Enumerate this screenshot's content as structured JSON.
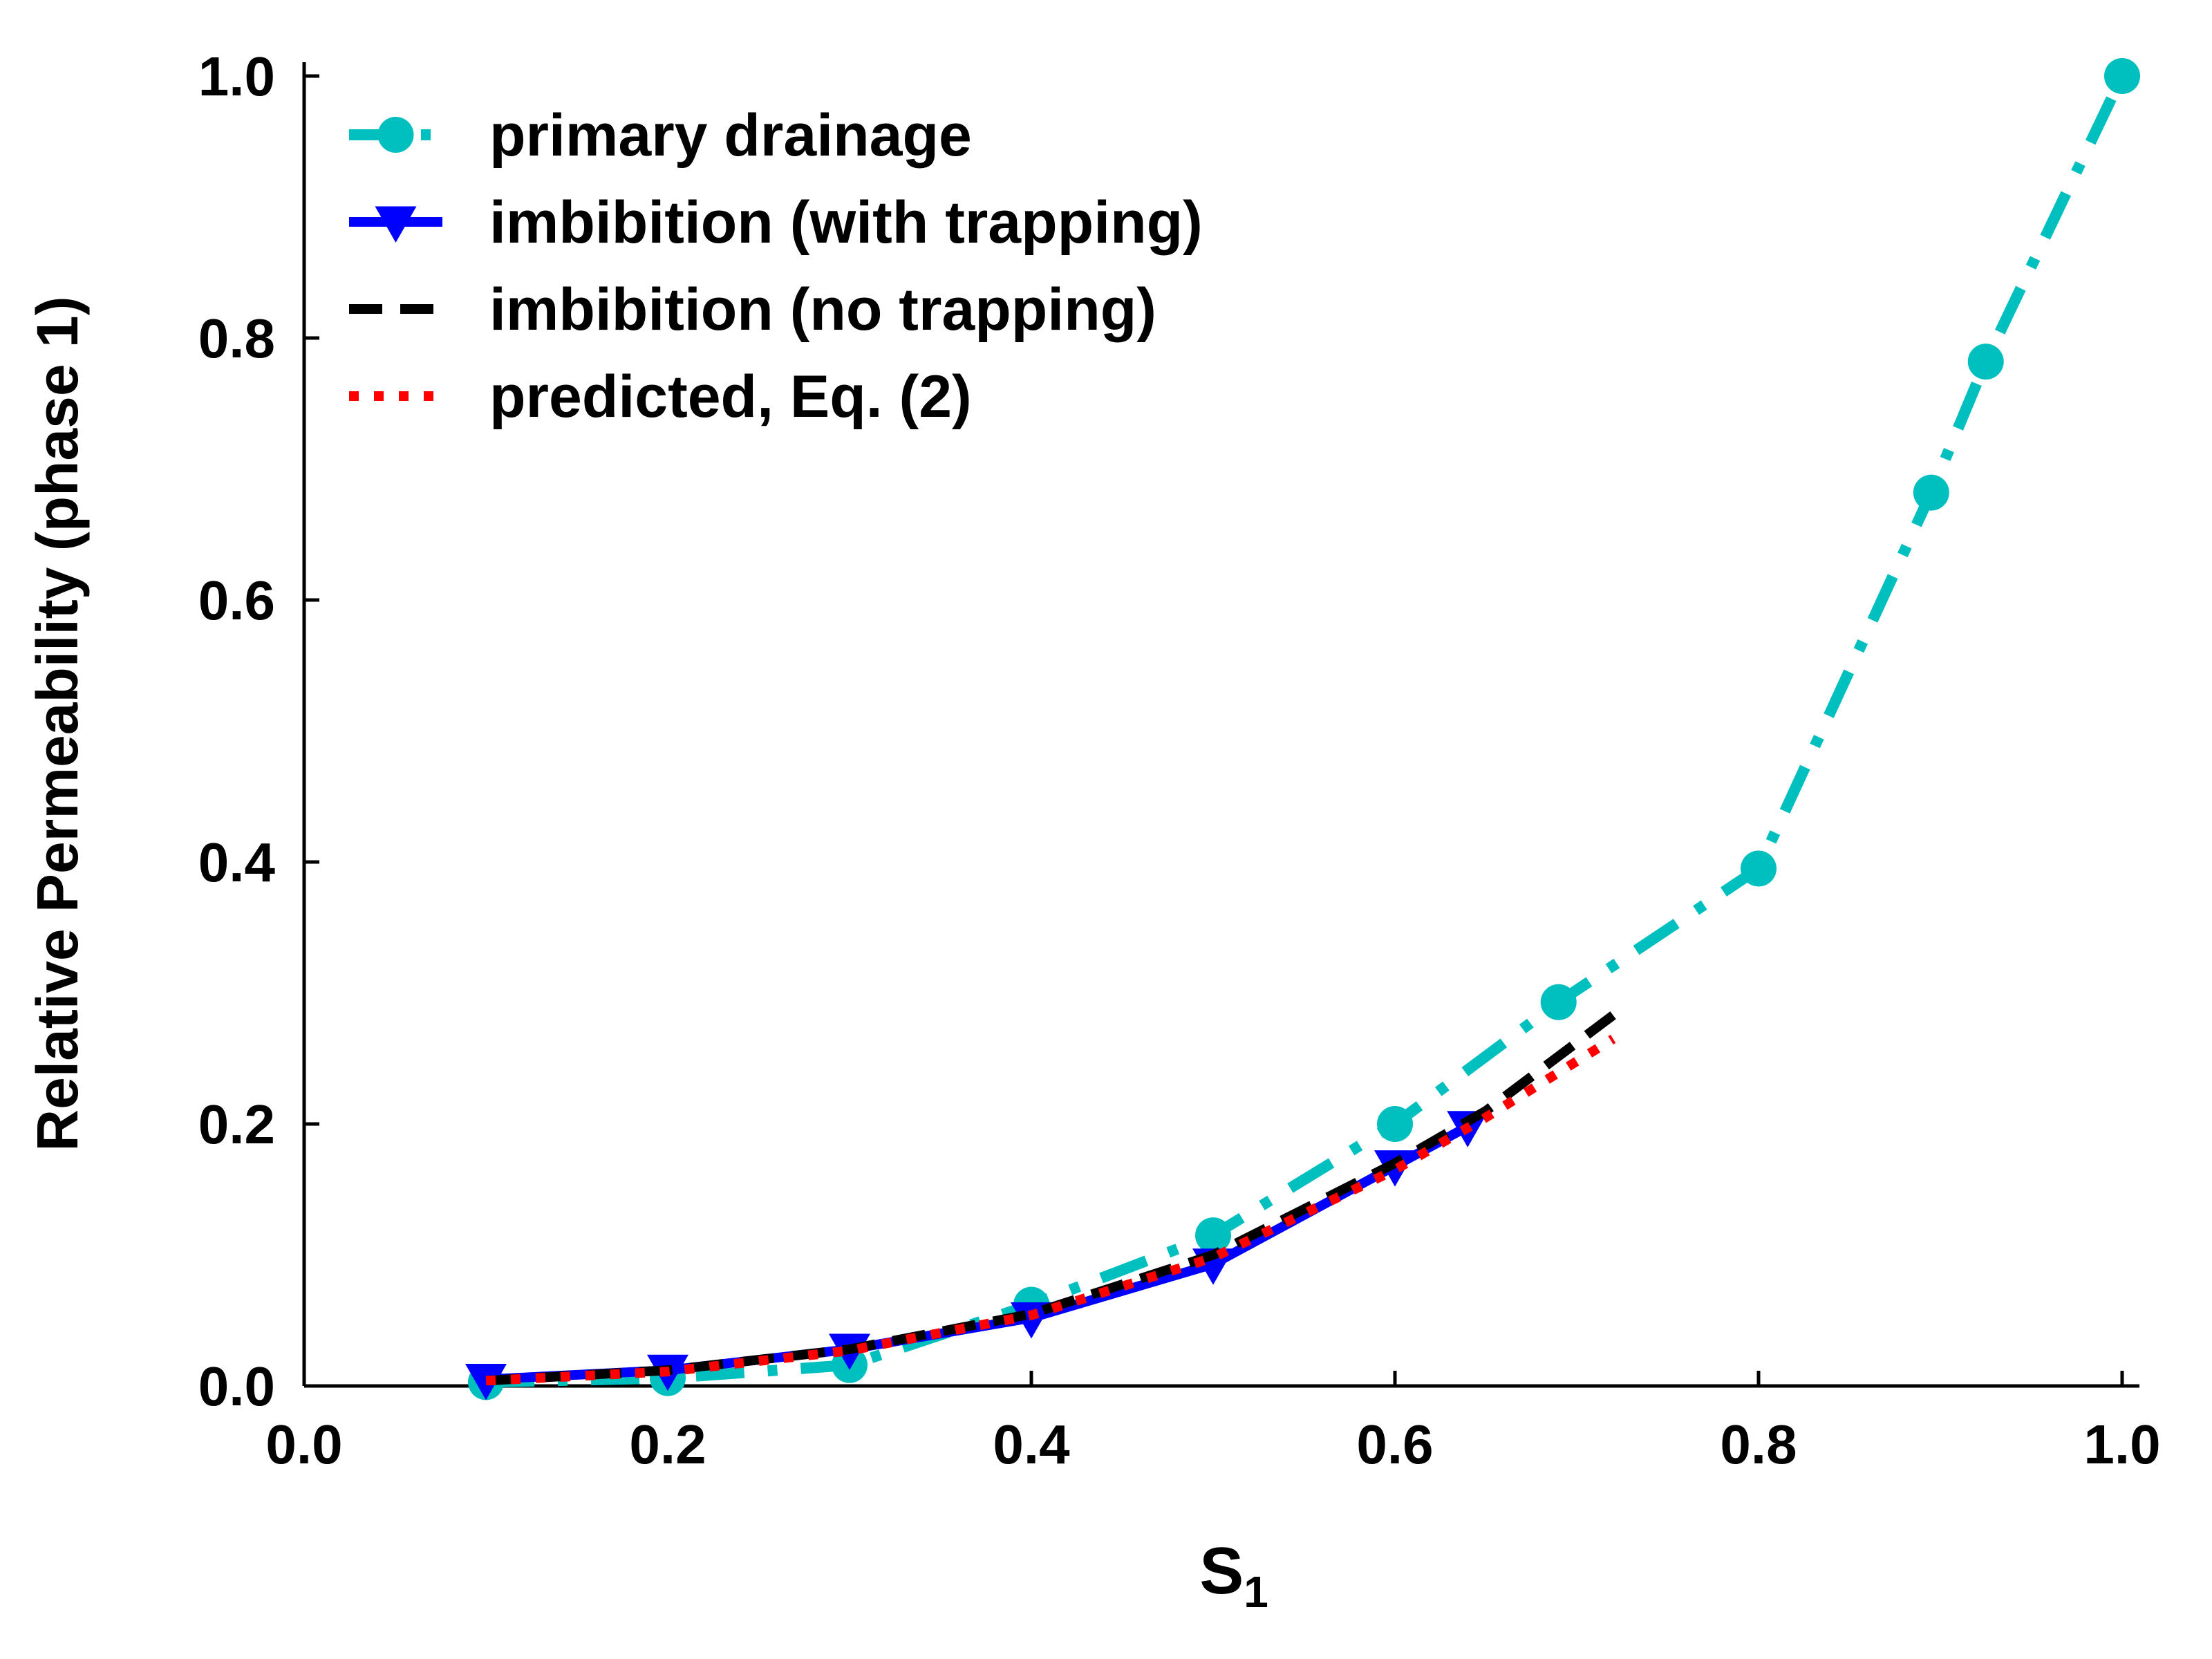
{
  "chart_data": {
    "type": "line",
    "title": "",
    "xlabel": "S",
    "xlabel_subscript": "1",
    "ylabel": "Relative Permeability (phase 1)",
    "xlim": [
      0.0,
      1.0
    ],
    "ylim": [
      0.0,
      1.0
    ],
    "xticks": [
      "0.0",
      "0.2",
      "0.4",
      "0.6",
      "0.8",
      "1.0"
    ],
    "yticks": [
      "0.0",
      "0.2",
      "0.4",
      "0.6",
      "0.8",
      "1.0"
    ],
    "grid": false,
    "legend_position": "top-left",
    "series": [
      {
        "name": "primary drainage",
        "color": "#00bfbf",
        "style": "dashdot",
        "marker": "circle",
        "x": [
          0.1,
          0.2,
          0.3,
          0.4,
          0.5,
          0.6,
          0.69,
          0.8,
          0.895,
          0.925,
          1.0
        ],
        "y": [
          0.003,
          0.006,
          0.016,
          0.062,
          0.115,
          0.2,
          0.293,
          0.395,
          0.682,
          0.782,
          1.0
        ]
      },
      {
        "name": "imbibition (with trapping)",
        "color": "#0000ff",
        "style": "solid",
        "marker": "triangle-down",
        "x": [
          0.1,
          0.2,
          0.3,
          0.4,
          0.5,
          0.6,
          0.64
        ],
        "y": [
          0.005,
          0.012,
          0.028,
          0.052,
          0.093,
          0.168,
          0.198
        ]
      },
      {
        "name": "imbibition (no trapping)",
        "color": "#000000",
        "style": "dashed",
        "marker": "none",
        "x": [
          0.1,
          0.2,
          0.3,
          0.4,
          0.5,
          0.6,
          0.65,
          0.72
        ],
        "y": [
          0.004,
          0.012,
          0.028,
          0.055,
          0.1,
          0.17,
          0.21,
          0.283
        ]
      },
      {
        "name": "predicted, Eq. (2)",
        "color": "#ff0000",
        "style": "dotted",
        "marker": "none",
        "x": [
          0.1,
          0.2,
          0.3,
          0.4,
          0.5,
          0.6,
          0.65,
          0.72
        ],
        "y": [
          0.004,
          0.011,
          0.027,
          0.054,
          0.098,
          0.165,
          0.205,
          0.265
        ]
      }
    ]
  }
}
